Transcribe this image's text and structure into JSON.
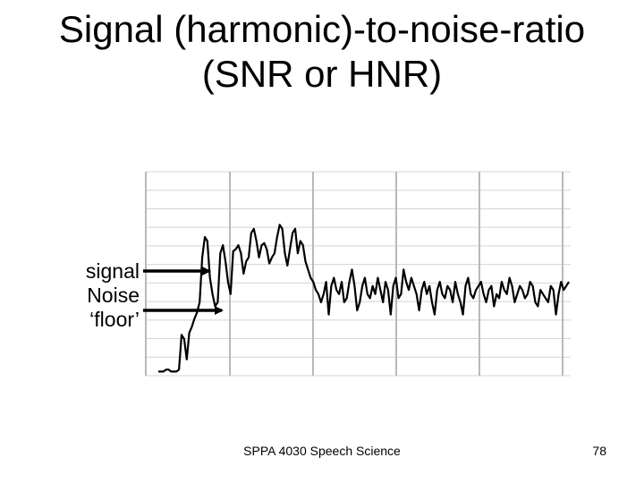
{
  "slide": {
    "title_line1": "Signal (harmonic)-to-noise-ratio",
    "title_line2": "(SNR or HNR)",
    "annotations": [
      "signal",
      "Noise",
      "‘floor’"
    ],
    "footer": "SPPA 4030 Speech Science",
    "page_number": "78"
  },
  "chart_data": {
    "type": "line",
    "title": "",
    "xlabel": "",
    "ylabel": "",
    "grid": true,
    "x": [
      0,
      1,
      2,
      3,
      4,
      5,
      6,
      7,
      8,
      9,
      10,
      11,
      12,
      13,
      14,
      15,
      16,
      17,
      18,
      19,
      20,
      21,
      22,
      23,
      24,
      25,
      26,
      27,
      28,
      29,
      30,
      31,
      32,
      33,
      34,
      35,
      36,
      37,
      38,
      39,
      40,
      41,
      42,
      43,
      44,
      45,
      46,
      47,
      48,
      49,
      50,
      51,
      52,
      53,
      54,
      55,
      56,
      57,
      58,
      59,
      60,
      61,
      62,
      63,
      64,
      65,
      66,
      67,
      68,
      69,
      70,
      71,
      72,
      73,
      74,
      75,
      76,
      77,
      78,
      79,
      80,
      81,
      82,
      83,
      84,
      85,
      86,
      87,
      88,
      89,
      90,
      91,
      92,
      93,
      94,
      95,
      96,
      97,
      98,
      99,
      100,
      101,
      102,
      103,
      104,
      105,
      106,
      107,
      108,
      109,
      110,
      111,
      112,
      113,
      114,
      115,
      116,
      117,
      118,
      119,
      120,
      121,
      122,
      123,
      124,
      125,
      126,
      127,
      128,
      129,
      130,
      131,
      132,
      133,
      134,
      135,
      136,
      137,
      138,
      139,
      140,
      141,
      142,
      143,
      144,
      145,
      146,
      147,
      148,
      149,
      150,
      151,
      152,
      153,
      154,
      155,
      156,
      157,
      158,
      159
    ],
    "y": [
      2,
      2,
      2,
      3,
      3,
      2,
      2,
      2,
      3,
      20,
      18,
      8,
      21,
      24,
      28,
      31,
      36,
      58,
      68,
      66,
      48,
      40,
      34,
      36,
      60,
      64,
      56,
      46,
      40,
      61,
      62,
      64,
      60,
      50,
      56,
      58,
      70,
      72,
      66,
      58,
      64,
      65,
      62,
      55,
      58,
      60,
      68,
      74,
      72,
      60,
      54,
      62,
      70,
      72,
      60,
      66,
      64,
      56,
      52,
      48,
      46,
      42,
      40,
      36,
      40,
      46,
      30,
      44,
      48,
      42,
      40,
      46,
      36,
      38,
      46,
      52,
      44,
      32,
      36,
      44,
      48,
      40,
      38,
      44,
      40,
      48,
      42,
      36,
      46,
      42,
      30,
      44,
      48,
      38,
      40,
      52,
      46,
      42,
      48,
      44,
      40,
      32,
      42,
      46,
      40,
      44,
      36,
      30,
      42,
      46,
      40,
      38,
      44,
      42,
      36,
      46,
      40,
      36,
      30,
      44,
      48,
      40,
      38,
      42,
      44,
      46,
      40,
      36,
      42,
      44,
      34,
      40,
      38,
      46,
      42,
      40,
      48,
      44,
      36,
      40,
      44,
      42,
      38,
      40,
      46,
      44,
      36,
      34,
      42,
      40,
      38,
      36,
      44,
      42,
      30,
      40,
      46,
      42,
      44,
      46
    ]
  }
}
